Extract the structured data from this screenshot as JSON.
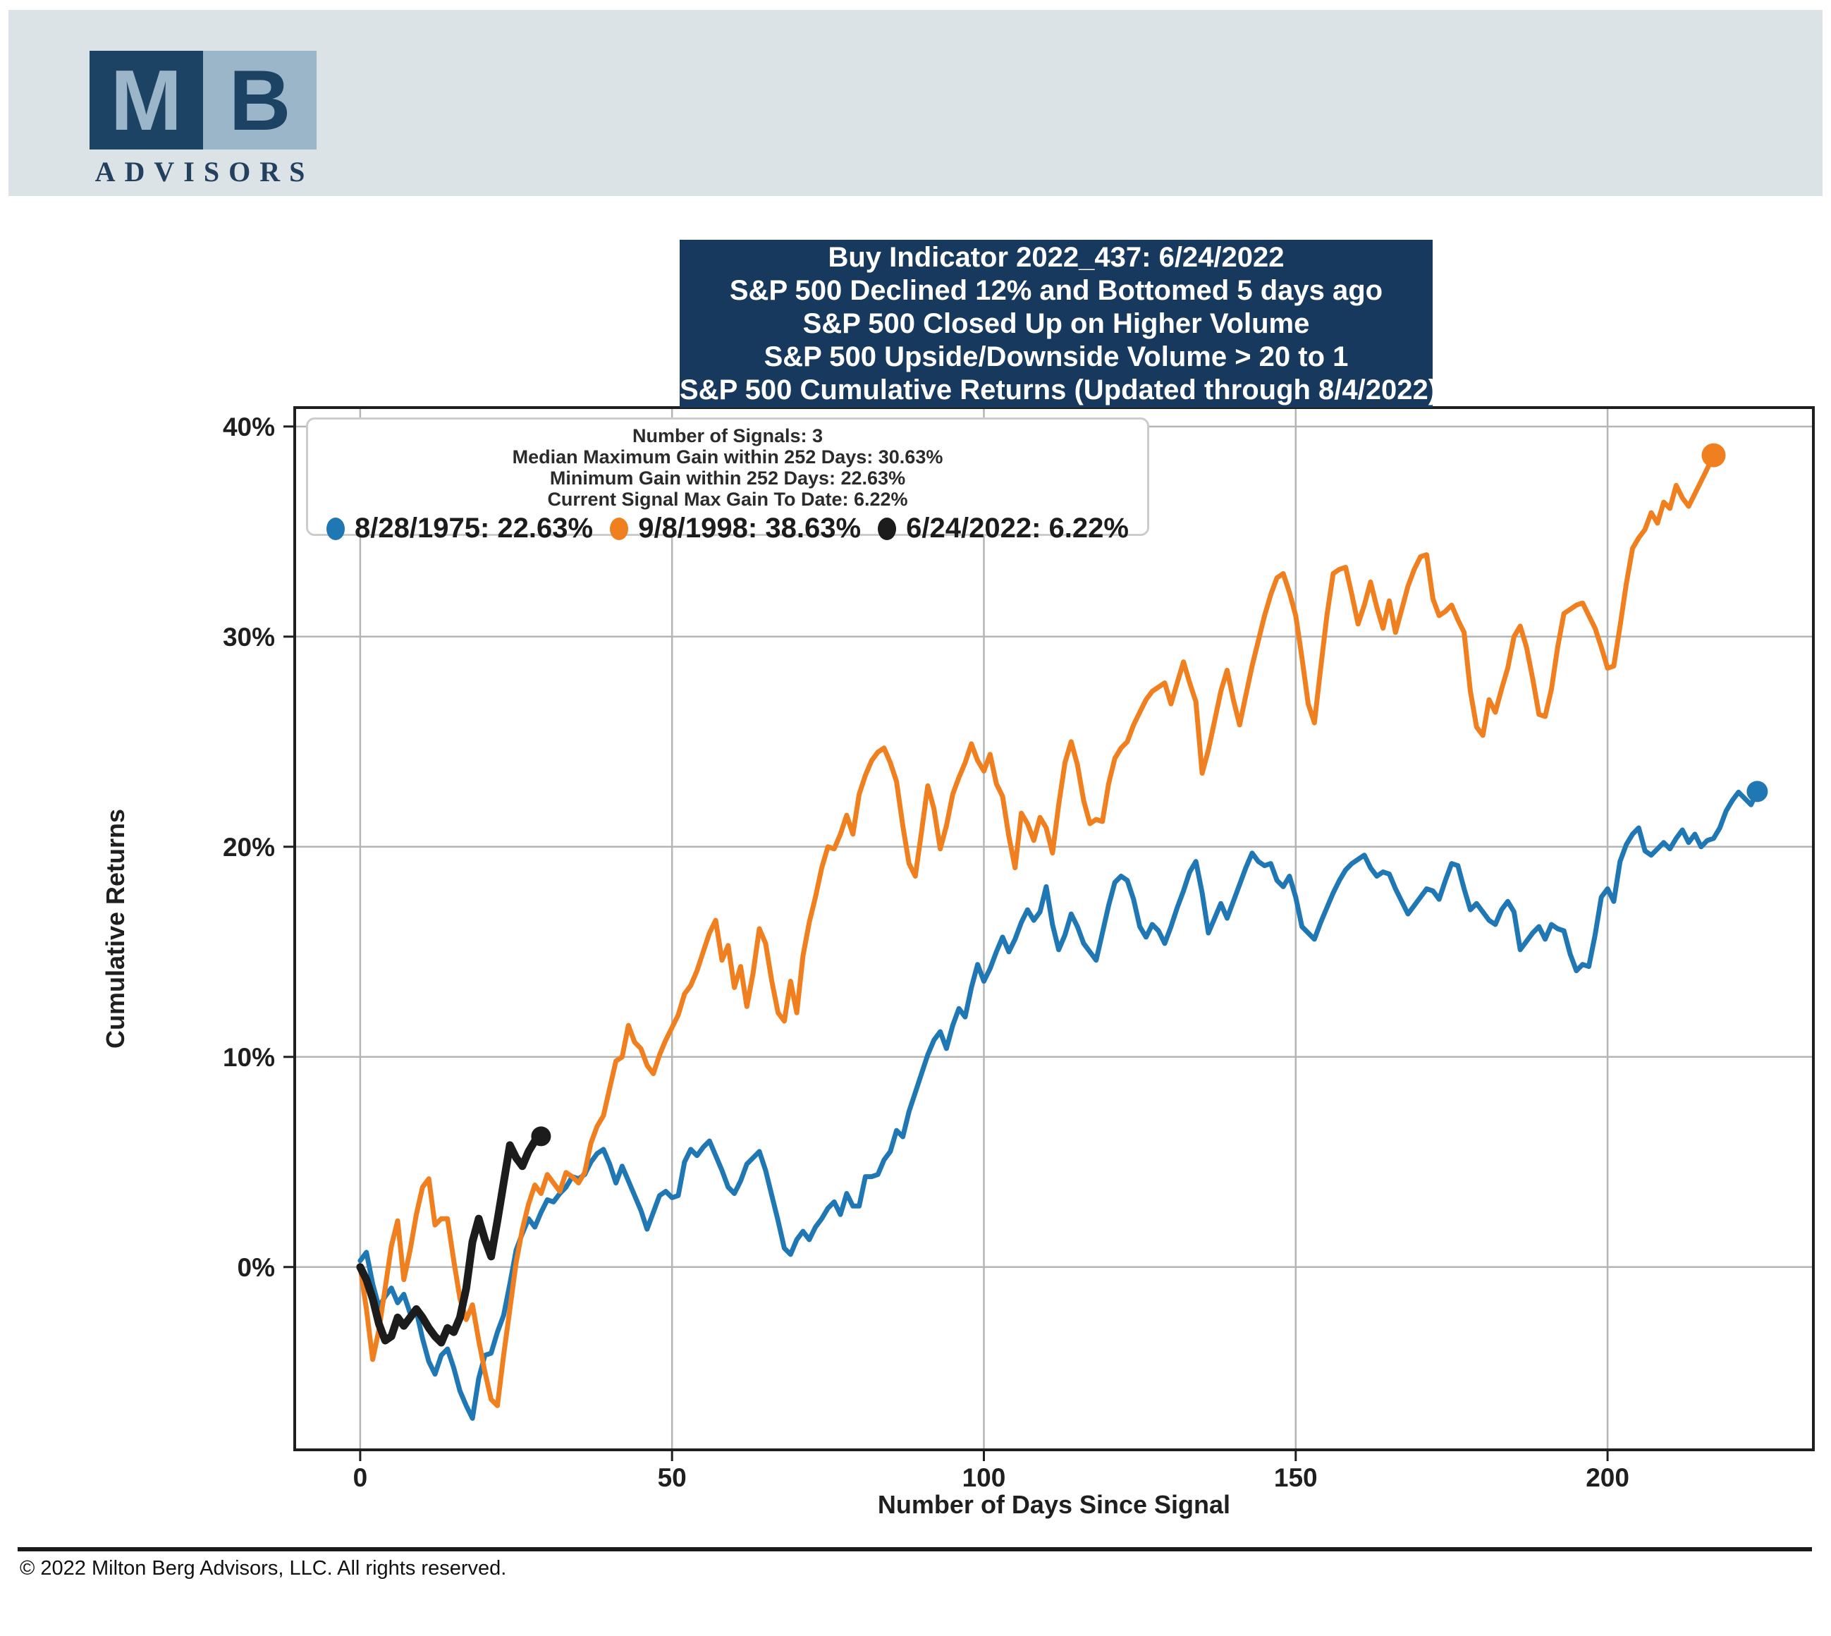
{
  "header": {
    "logo_m": "M",
    "logo_b": "B",
    "logo_subtitle": "ADVISORS",
    "band_color": "#dbe3e7",
    "navy_color": "#1c4264",
    "light_blue_color": "#9cb6c9"
  },
  "title_box": {
    "background": "#17395d",
    "lines": [
      "Buy Indicator 2022_437: 6/24/2022",
      "S&P 500 Declined 12% and Bottomed 5 days ago",
      "S&P 500 Closed Up on Higher Volume",
      "S&P 500 Upside/Downside Volume > 20 to 1",
      "S&P 500 Cumulative Returns (Updated through 8/4/2022)"
    ]
  },
  "legend": {
    "stats_lines": [
      "Number of Signals: 3",
      "Median Maximum Gain within 252 Days: 30.63%",
      "Minimum Gain within 252 Days: 22.63%",
      "Current Signal Max Gain To Date: 6.22%"
    ],
    "series": [
      {
        "label": "8/28/1975: 22.63%",
        "color": "#1f77b4"
      },
      {
        "label": "9/8/1998: 38.63%",
        "color": "#f0801f"
      },
      {
        "label": "6/24/2022: 6.22%",
        "color": "#1c1c1c"
      }
    ]
  },
  "footer": {
    "text": "© 2022 Milton Berg Advisors, LLC. All rights reserved."
  },
  "chart_data": {
    "type": "line",
    "title": "S&P 500 Cumulative Returns (Updated through 8/4/2022)",
    "xlabel": "Number of Days Since Signal",
    "ylabel": "Cumulative Returns",
    "xlim": [
      -10.5,
      233
    ],
    "ylim": [
      -8.7,
      40.9
    ],
    "grid": true,
    "legend_position": "upper left",
    "xticks": [
      {
        "v": 0,
        "label": "0"
      },
      {
        "v": 50,
        "label": "50"
      },
      {
        "v": 100,
        "label": "100"
      },
      {
        "v": 150,
        "label": "150"
      },
      {
        "v": 200,
        "label": "200"
      }
    ],
    "yticks": [
      {
        "v": 0,
        "label": "0%"
      },
      {
        "v": 10,
        "label": "10%"
      },
      {
        "v": 20,
        "label": "20%"
      },
      {
        "v": 30,
        "label": "30%"
      },
      {
        "v": 40,
        "label": "40%"
      }
    ],
    "series": [
      {
        "id": "1975",
        "name": "8/28/1975: 22.63%",
        "signal_date": "8/28/1975",
        "final_gain_pct": 22.63,
        "color": "#1f77b4",
        "line_width": 7,
        "end_dot_radius": 15,
        "x_start": 0,
        "x_step": 1,
        "values": [
          0.3,
          0.7,
          -0.8,
          -1.9,
          -1.4,
          -1.0,
          -1.7,
          -1.3,
          -2.2,
          -2.1,
          -3.4,
          -4.5,
          -5.1,
          -4.2,
          -3.9,
          -4.8,
          -5.9,
          -6.6,
          -7.2,
          -5.3,
          -4.2,
          -4.1,
          -3.1,
          -2.3,
          -0.8,
          0.8,
          1.6,
          2.3,
          1.9,
          2.6,
          3.2,
          3.1,
          3.5,
          3.8,
          4.3,
          4.2,
          4.4,
          5.0,
          5.4,
          5.6,
          4.9,
          4.0,
          4.8,
          4.1,
          3.4,
          2.7,
          1.8,
          2.6,
          3.4,
          3.6,
          3.3,
          3.4,
          5.0,
          5.6,
          5.3,
          5.7,
          6.0,
          5.3,
          4.6,
          3.8,
          3.5,
          4.1,
          4.9,
          5.2,
          5.5,
          4.6,
          3.4,
          2.2,
          0.9,
          0.6,
          1.3,
          1.7,
          1.3,
          1.9,
          2.3,
          2.8,
          3.1,
          2.5,
          3.5,
          2.9,
          2.9,
          4.3,
          4.3,
          4.4,
          5.1,
          5.5,
          6.5,
          6.2,
          7.4,
          8.3,
          9.2,
          10.1,
          10.8,
          11.2,
          10.4,
          11.5,
          12.3,
          11.9,
          13.3,
          14.4,
          13.6,
          14.2,
          15.0,
          15.7,
          15.0,
          15.6,
          16.4,
          17.0,
          16.5,
          16.9,
          18.1,
          16.3,
          15.1,
          15.8,
          16.8,
          16.2,
          15.4,
          15.0,
          14.6,
          15.9,
          17.2,
          18.3,
          18.6,
          18.4,
          17.5,
          16.2,
          15.7,
          16.3,
          16.0,
          15.4,
          16.2,
          17.1,
          17.9,
          18.8,
          19.3,
          17.8,
          15.9,
          16.6,
          17.3,
          16.6,
          17.4,
          18.2,
          19.0,
          19.7,
          19.3,
          19.1,
          19.2,
          18.4,
          18.1,
          18.6,
          17.6,
          16.2,
          15.9,
          15.6,
          16.4,
          17.1,
          17.8,
          18.4,
          18.9,
          19.2,
          19.4,
          19.6,
          19.0,
          18.6,
          18.8,
          18.7,
          18.0,
          17.4,
          16.8,
          17.2,
          17.6,
          18.0,
          17.9,
          17.5,
          18.4,
          19.2,
          19.1,
          18.0,
          17.0,
          17.3,
          16.9,
          16.5,
          16.3,
          17.0,
          17.4,
          16.9,
          15.1,
          15.5,
          15.9,
          16.2,
          15.6,
          16.3,
          16.1,
          16.0,
          14.9,
          14.1,
          14.4,
          14.3,
          15.8,
          17.6,
          18.0,
          17.4,
          19.3,
          20.1,
          20.6,
          20.9,
          19.8,
          19.6,
          19.9,
          20.2,
          19.9,
          20.4,
          20.8,
          20.2,
          20.6,
          20.0,
          20.3,
          20.4,
          20.9,
          21.7,
          22.2,
          22.6,
          22.3,
          22.0,
          22.63
        ]
      },
      {
        "id": "1998",
        "name": "9/8/1998: 38.63%",
        "signal_date": "9/8/1998",
        "final_gain_pct": 38.63,
        "color": "#f0801f",
        "line_width": 7,
        "end_dot_radius": 17,
        "x_start": 0,
        "x_step": 1,
        "values": [
          0.0,
          -2.0,
          -4.4,
          -3.0,
          -1.0,
          1.0,
          2.2,
          -0.6,
          0.8,
          2.5,
          3.8,
          4.2,
          2.0,
          2.3,
          2.3,
          0.3,
          -1.5,
          -2.5,
          -1.8,
          -3.5,
          -5.0,
          -6.3,
          -6.6,
          -4.2,
          -2.0,
          0.2,
          1.8,
          3.0,
          3.9,
          3.5,
          4.4,
          4.0,
          3.6,
          4.5,
          4.3,
          4.0,
          4.5,
          5.9,
          6.7,
          7.2,
          8.5,
          9.8,
          10.0,
          11.5,
          10.7,
          10.4,
          9.6,
          9.2,
          10.1,
          10.8,
          11.4,
          12.0,
          13.0,
          13.4,
          14.1,
          15.0,
          15.9,
          16.5,
          14.6,
          15.3,
          13.3,
          14.3,
          12.4,
          14.0,
          16.1,
          15.4,
          13.6,
          12.1,
          11.7,
          13.6,
          12.1,
          14.8,
          16.4,
          17.6,
          19.0,
          20.0,
          19.9,
          20.6,
          21.5,
          20.6,
          22.5,
          23.4,
          24.1,
          24.5,
          24.7,
          24.0,
          23.1,
          21.0,
          19.2,
          18.6,
          20.7,
          22.9,
          21.8,
          19.9,
          21.0,
          22.5,
          23.3,
          24.0,
          24.9,
          24.1,
          23.6,
          24.4,
          23.0,
          22.4,
          20.5,
          19.0,
          21.6,
          21.1,
          20.3,
          21.4,
          20.9,
          19.7,
          22.0,
          24.0,
          25.0,
          23.9,
          22.2,
          21.1,
          21.3,
          21.2,
          23.0,
          24.2,
          24.7,
          25.0,
          25.8,
          26.4,
          27.0,
          27.4,
          27.6,
          27.8,
          26.8,
          27.8,
          28.8,
          27.8,
          26.9,
          23.5,
          24.6,
          26.0,
          27.4,
          28.4,
          27.0,
          25.8,
          27.2,
          28.6,
          29.8,
          31.0,
          32.0,
          32.8,
          33.0,
          32.1,
          31.0,
          29.0,
          26.8,
          25.9,
          28.5,
          31.0,
          33.0,
          33.2,
          33.3,
          32.0,
          30.6,
          31.5,
          32.6,
          31.4,
          30.4,
          31.7,
          30.2,
          31.3,
          32.4,
          33.2,
          33.8,
          33.9,
          31.8,
          31.0,
          31.2,
          31.5,
          30.8,
          30.2,
          27.4,
          25.7,
          25.3,
          27.0,
          26.4,
          27.5,
          28.5,
          30.0,
          30.5,
          29.5,
          28.0,
          26.3,
          26.2,
          27.5,
          29.5,
          31.1,
          31.3,
          31.5,
          31.6,
          31.0,
          30.4,
          29.5,
          28.5,
          28.6,
          30.5,
          32.5,
          34.2,
          34.7,
          35.1,
          35.9,
          35.4,
          36.4,
          36.1,
          37.2,
          36.6,
          36.2,
          36.8,
          37.4,
          38.0,
          38.63
        ]
      },
      {
        "id": "2022",
        "name": "6/24/2022: 6.22%",
        "signal_date": "6/24/2022",
        "final_gain_pct": 6.22,
        "color": "#1c1c1c",
        "line_width": 11,
        "end_dot_radius": 14,
        "x_start": 0,
        "x_step": 1,
        "values": [
          0.0,
          -0.6,
          -1.5,
          -2.7,
          -3.5,
          -3.3,
          -2.4,
          -2.8,
          -2.4,
          -2.0,
          -2.4,
          -2.9,
          -3.3,
          -3.6,
          -2.9,
          -3.1,
          -2.4,
          -1.0,
          1.2,
          2.3,
          1.3,
          0.5,
          2.2,
          4.0,
          5.8,
          5.2,
          4.8,
          5.5,
          6.0,
          6.22
        ]
      }
    ]
  }
}
